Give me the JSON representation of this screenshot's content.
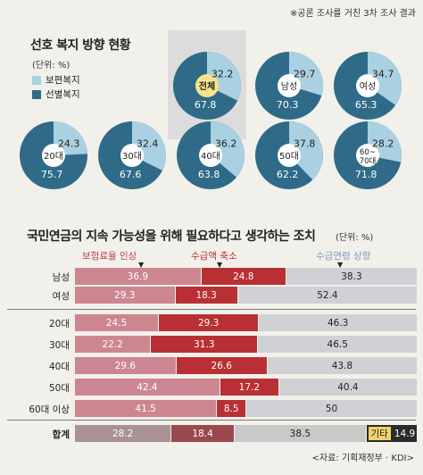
{
  "note": "※공론 조사를 거친 3차 조사 결과",
  "welfare_title": "선호 복지 방향 현황",
  "welfare_unit": "(단위: %)",
  "legend": [
    {
      "label": "보편복지",
      "color": "#a9d1e1"
    },
    {
      "label": "선별복지",
      "color": "#2f6b88"
    }
  ],
  "pension_title": "국민연금의 지속 가능성을 위해 필요하다고 생각하는 조치",
  "pension_unit": "(단위: %)",
  "pension_headers": [
    {
      "label": "보험료율 인상",
      "color": "#c0404f"
    },
    {
      "label": "수급액 축소",
      "color": "#b83034"
    },
    {
      "label": "수급연령 상향",
      "color": "#7f9cbf"
    }
  ],
  "other_label": "기타",
  "source": "<자료: 기획재정부 · KDI>",
  "colors": {
    "universal": "#a9d1e1",
    "selective": "#2f6b88",
    "premium": "#cd8690",
    "reduction": "#b83034",
    "age": "#d0d1d5",
    "total_premium": "#a89294",
    "total_reduction": "#9a4a4c",
    "total_age": "#c9c9c9",
    "other": "#2b2b2b"
  },
  "chart_data": [
    {
      "type": "pie",
      "title": "선호 복지 방향 현황",
      "series_names": [
        "보편복지",
        "선별복지"
      ],
      "groups": [
        {
          "name": "전체",
          "values": [
            32.2,
            67.8
          ],
          "highlight": true
        },
        {
          "name": "남성",
          "values": [
            29.7,
            70.3
          ]
        },
        {
          "name": "여성",
          "values": [
            34.7,
            65.3
          ]
        },
        {
          "name": "20대",
          "values": [
            24.3,
            75.7
          ]
        },
        {
          "name": "30대",
          "values": [
            32.4,
            67.6
          ]
        },
        {
          "name": "40대",
          "values": [
            36.2,
            63.8
          ]
        },
        {
          "name": "50대",
          "values": [
            37.8,
            62.2
          ]
        },
        {
          "name": "60~\n70대",
          "values": [
            28.2,
            71.8
          ]
        }
      ]
    },
    {
      "type": "bar",
      "stacked": true,
      "orientation": "horizontal",
      "title": "국민연금의 지속 가능성을 위해 필요하다고 생각하는 조치",
      "series_names": [
        "보험료율 인상",
        "수급액 축소",
        "수급연령 상향",
        "기타"
      ],
      "rows": [
        {
          "label": "남성",
          "values": [
            36.9,
            24.8,
            38.3
          ]
        },
        {
          "label": "여성",
          "values": [
            29.3,
            18.3,
            52.4
          ]
        },
        {
          "label": "20대",
          "values": [
            24.5,
            29.3,
            46.3
          ]
        },
        {
          "label": "30대",
          "values": [
            22.2,
            31.3,
            46.5
          ]
        },
        {
          "label": "40대",
          "values": [
            29.6,
            26.6,
            43.8
          ]
        },
        {
          "label": "50대",
          "values": [
            42.4,
            17.2,
            40.4
          ]
        },
        {
          "label": "60대 이상",
          "values": [
            41.5,
            8.5,
            50.0
          ]
        },
        {
          "label": "합계",
          "values": [
            28.2,
            18.4,
            38.5,
            14.9
          ],
          "total": true
        }
      ]
    }
  ]
}
